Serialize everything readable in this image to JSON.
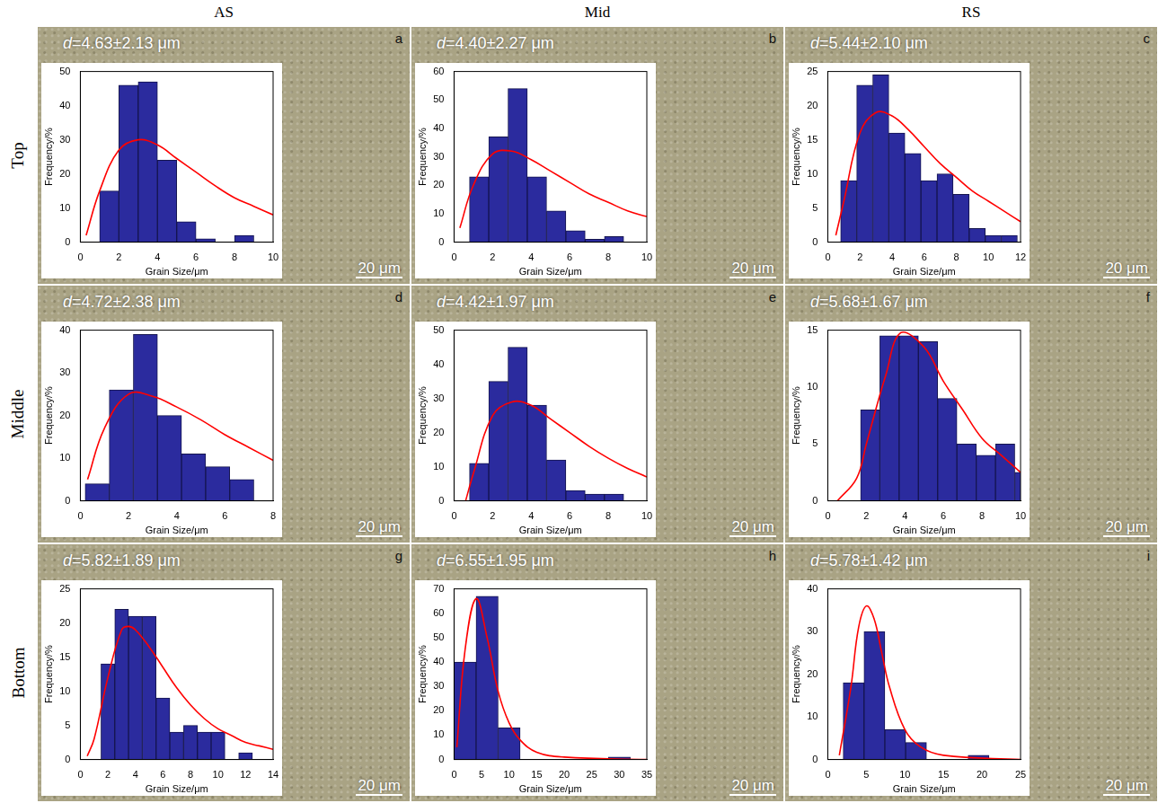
{
  "column_titles": [
    "AS",
    "Mid",
    "RS"
  ],
  "row_titles": [
    "Top",
    "Middle",
    "Bottom"
  ],
  "chart_data": [
    {
      "type": "histogram",
      "panel": "a",
      "annotation": "d=4.63±2.13 μm",
      "scale_bar": "20 μm",
      "x_label": "Grain Size/μm",
      "y_label": "Frequency/%",
      "color": "#2b2b9e",
      "grid": false,
      "bins": [
        1,
        2,
        3,
        4,
        5,
        6,
        7,
        8,
        9
      ],
      "values": [
        15,
        46,
        47,
        24,
        6,
        1,
        0,
        2
      ],
      "xlim": [
        0,
        10
      ],
      "xticks": [
        0,
        2,
        4,
        6,
        8,
        10
      ],
      "ylim": [
        0,
        50
      ],
      "yticks": [
        0,
        10,
        20,
        30,
        40,
        50
      ],
      "fit": {
        "color": "#ff0000",
        "x": [
          0.3,
          1,
          2,
          3,
          4,
          5,
          6,
          7,
          8,
          9,
          10
        ],
        "y": [
          2,
          15,
          27,
          30,
          28.5,
          24.5,
          20.5,
          16.5,
          13,
          10.5,
          8
        ]
      }
    },
    {
      "type": "histogram",
      "panel": "b",
      "annotation": "d=4.40±2.27 μm",
      "scale_bar": "20 μm",
      "x_label": "Grain Size/μm",
      "y_label": "Frequency/%",
      "color": "#2b2b9e",
      "grid": false,
      "bins": [
        0.8,
        1.8,
        2.8,
        3.8,
        4.8,
        5.8,
        6.8,
        7.8,
        8.8
      ],
      "values": [
        23,
        37,
        54,
        23,
        11,
        4,
        1,
        2
      ],
      "xlim": [
        0,
        10
      ],
      "xticks": [
        0,
        2,
        4,
        6,
        8,
        10
      ],
      "ylim": [
        0,
        60
      ],
      "yticks": [
        0,
        10,
        20,
        30,
        40,
        50,
        60
      ],
      "fit": {
        "color": "#ff0000",
        "x": [
          0.3,
          1,
          2,
          3,
          4,
          5,
          6,
          7,
          8,
          9,
          10
        ],
        "y": [
          5,
          20,
          31,
          32,
          29,
          25,
          21,
          17,
          14,
          11,
          9
        ]
      }
    },
    {
      "type": "histogram",
      "panel": "c",
      "annotation": "d=5.44±2.10 μm",
      "scale_bar": "20 μm",
      "x_label": "Grain Size/μm",
      "y_label": "Frequency/%",
      "color": "#2b2b9e",
      "grid": false,
      "bins": [
        0.8,
        1.8,
        2.8,
        3.8,
        4.8,
        5.8,
        6.8,
        7.8,
        8.8,
        9.8,
        10.8,
        11.8
      ],
      "values": [
        9,
        23,
        24.5,
        16,
        13,
        9,
        10,
        7,
        2,
        1,
        1
      ],
      "xlim": [
        0,
        12
      ],
      "xticks": [
        0,
        2,
        4,
        6,
        8,
        10,
        12
      ],
      "ylim": [
        0,
        25
      ],
      "yticks": [
        0,
        5,
        10,
        15,
        20,
        25
      ],
      "fit": {
        "color": "#ff0000",
        "x": [
          0.5,
          1,
          2,
          3,
          4,
          5,
          6,
          7,
          8,
          9,
          10,
          11,
          12
        ],
        "y": [
          1,
          6,
          16,
          19,
          18.5,
          16.5,
          14,
          11.5,
          9.5,
          7.5,
          6,
          4.5,
          3
        ]
      }
    },
    {
      "type": "histogram",
      "panel": "d",
      "annotation": "d=4.72±2.38 μm",
      "scale_bar": "20 μm",
      "x_label": "Grain Size/μm",
      "y_label": "Frequency/%",
      "color": "#2b2b9e",
      "grid": false,
      "bins": [
        0.2,
        1.2,
        2.2,
        3.2,
        4.2,
        5.2,
        6.2,
        7.2
      ],
      "values": [
        4,
        26,
        39,
        20,
        11,
        8,
        5
      ],
      "xlim": [
        0,
        8
      ],
      "xticks": [
        0,
        2,
        4,
        6,
        8
      ],
      "ylim": [
        0,
        40
      ],
      "yticks": [
        0,
        10,
        20,
        30,
        40
      ],
      "fit": {
        "color": "#ff0000",
        "x": [
          0.3,
          1,
          2,
          3,
          4,
          5,
          6,
          7,
          8
        ],
        "y": [
          5,
          17,
          25,
          24.5,
          22,
          19,
          15.5,
          12.5,
          9.5
        ]
      }
    },
    {
      "type": "histogram",
      "panel": "e",
      "annotation": "d=4.42±1.97 μm",
      "scale_bar": "20 μm",
      "x_label": "Grain Size/μm",
      "y_label": "Frequency/%",
      "color": "#2b2b9e",
      "grid": false,
      "bins": [
        0.8,
        1.8,
        2.8,
        3.8,
        4.8,
        5.8,
        6.8,
        7.8,
        8.8
      ],
      "values": [
        11,
        35,
        45,
        28,
        12,
        3,
        2,
        2
      ],
      "xlim": [
        0,
        10
      ],
      "xticks": [
        0,
        2,
        4,
        6,
        8,
        10
      ],
      "ylim": [
        0,
        50
      ],
      "yticks": [
        0,
        10,
        20,
        30,
        40,
        50
      ],
      "fit": {
        "color": "#ff0000",
        "x": [
          0.6,
          1,
          2,
          3,
          4,
          5,
          6,
          7,
          8,
          9,
          10
        ],
        "y": [
          0,
          8,
          25,
          29,
          28,
          24,
          20,
          16,
          12.5,
          9.5,
          7
        ]
      }
    },
    {
      "type": "histogram",
      "panel": "f",
      "annotation": "d=5.68±1.67 μm",
      "scale_bar": "20 μm",
      "x_label": "Grain Size/μm",
      "y_label": "Frequency/%",
      "color": "#2b2b9e",
      "grid": false,
      "bins": [
        1.7,
        2.7,
        3.7,
        4.7,
        5.7,
        6.7,
        7.7,
        8.7,
        9.7,
        10.7
      ],
      "values": [
        8,
        14.5,
        14.5,
        14,
        9,
        5,
        4,
        5,
        2.5
      ],
      "xlim": [
        0,
        10
      ],
      "xticks": [
        0,
        2,
        4,
        6,
        8,
        10
      ],
      "ylim": [
        0,
        15
      ],
      "yticks": [
        0,
        5,
        10,
        15
      ],
      "fit": {
        "color": "#ff0000",
        "x": [
          0.5,
          1.5,
          2,
          3,
          3.8,
          5,
          6,
          7,
          8,
          9,
          10
        ],
        "y": [
          0,
          2,
          5,
          11,
          14.8,
          13.5,
          10.5,
          8,
          5.5,
          4,
          2.5
        ]
      }
    },
    {
      "type": "histogram",
      "panel": "g",
      "annotation": "d=5.82±1.89 μm",
      "scale_bar": "20 μm",
      "x_label": "Grain Size/μm",
      "y_label": "Frequency/%",
      "color": "#2b2b9e",
      "grid": false,
      "bins": [
        1.5,
        2.5,
        3.5,
        4.5,
        5.5,
        6.5,
        7.5,
        8.5,
        9.5,
        10.5,
        11.5,
        12.5
      ],
      "values": [
        14,
        22,
        21,
        21,
        9,
        4,
        5,
        4,
        4,
        0,
        1
      ],
      "xlim": [
        0,
        14
      ],
      "xticks": [
        0,
        2,
        4,
        6,
        8,
        10,
        12,
        14
      ],
      "ylim": [
        0,
        25
      ],
      "yticks": [
        0,
        5,
        10,
        15,
        20,
        25
      ],
      "fit": {
        "color": "#ff0000",
        "x": [
          0.5,
          1,
          2,
          3,
          3.5,
          4,
          5,
          6,
          7,
          8,
          9,
          10,
          11,
          12,
          13,
          14
        ],
        "y": [
          0.5,
          3,
          12,
          19,
          19.5,
          19,
          16.5,
          13.5,
          10.5,
          8,
          6,
          4.5,
          3.5,
          2.5,
          2,
          1.5
        ]
      }
    },
    {
      "type": "histogram",
      "panel": "h",
      "annotation": "d=6.55±1.95 μm",
      "scale_bar": "20 μm",
      "x_label": "Grain Size/μm",
      "y_label": "Frequency/%",
      "color": "#2b2b9e",
      "grid": false,
      "bins": [
        0,
        4,
        8,
        12,
        16,
        20,
        24,
        28,
        32
      ],
      "values": [
        40,
        67,
        13,
        0,
        0,
        0,
        0,
        1
      ],
      "xlim": [
        0,
        35
      ],
      "xticks": [
        0,
        5,
        10,
        15,
        20,
        25,
        30,
        35
      ],
      "ylim": [
        0,
        70
      ],
      "yticks": [
        0,
        10,
        20,
        30,
        40,
        50,
        60,
        70
      ],
      "fit": {
        "color": "#ff0000",
        "x": [
          0.5,
          2,
          4,
          6,
          8,
          10,
          12,
          15,
          20,
          35
        ],
        "y": [
          5,
          45,
          66,
          50,
          28,
          15,
          8,
          3,
          1,
          0
        ]
      }
    },
    {
      "type": "histogram",
      "panel": "i",
      "annotation": "d=5.78±1.42 μm",
      "scale_bar": "20 μm",
      "x_label": "Grain Size/μm",
      "y_label": "Frequency/%",
      "color": "#2b2b9e",
      "grid": false,
      "bins": [
        2,
        4.7,
        7.4,
        10.1,
        12.8,
        15.5,
        18.2,
        20.9
      ],
      "values": [
        18,
        30,
        7,
        4,
        0,
        0,
        1
      ],
      "xlim": [
        0,
        25
      ],
      "xticks": [
        0,
        5,
        10,
        15,
        20,
        25
      ],
      "ylim": [
        0,
        40
      ],
      "yticks": [
        0,
        10,
        20,
        30,
        40
      ],
      "fit": {
        "color": "#ff0000",
        "x": [
          1.5,
          3,
          4,
          5,
          6,
          7,
          8,
          10,
          12,
          15,
          25
        ],
        "y": [
          1,
          17,
          31,
          36,
          33,
          25,
          17,
          7,
          3,
          1,
          0
        ]
      }
    }
  ]
}
